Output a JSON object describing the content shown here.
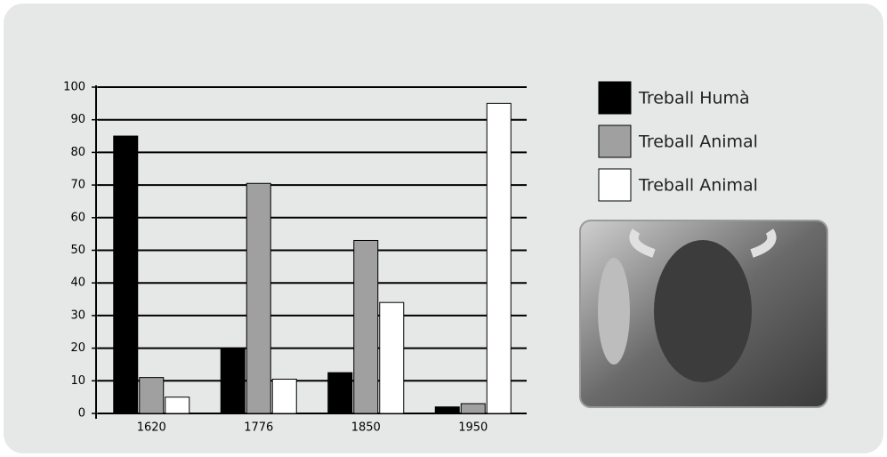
{
  "chart_data": {
    "type": "bar",
    "categories": [
      "1620",
      "1776",
      "1850",
      "1950"
    ],
    "series": [
      {
        "name": "Treball Humà",
        "color": "#000000",
        "values": [
          85,
          20,
          12.5,
          2
        ]
      },
      {
        "name": "Treball Animal",
        "color": "#a0a0a0",
        "values": [
          11,
          70.5,
          53,
          3
        ]
      },
      {
        "name": "Treball Animal",
        "color": "#ffffff",
        "values": [
          5,
          10.5,
          34,
          95
        ]
      }
    ],
    "ylim": [
      0,
      100
    ],
    "yticks": [
      0,
      10,
      20,
      30,
      40,
      50,
      60,
      70,
      80,
      90,
      100
    ],
    "grid": true,
    "legend": "right"
  }
}
